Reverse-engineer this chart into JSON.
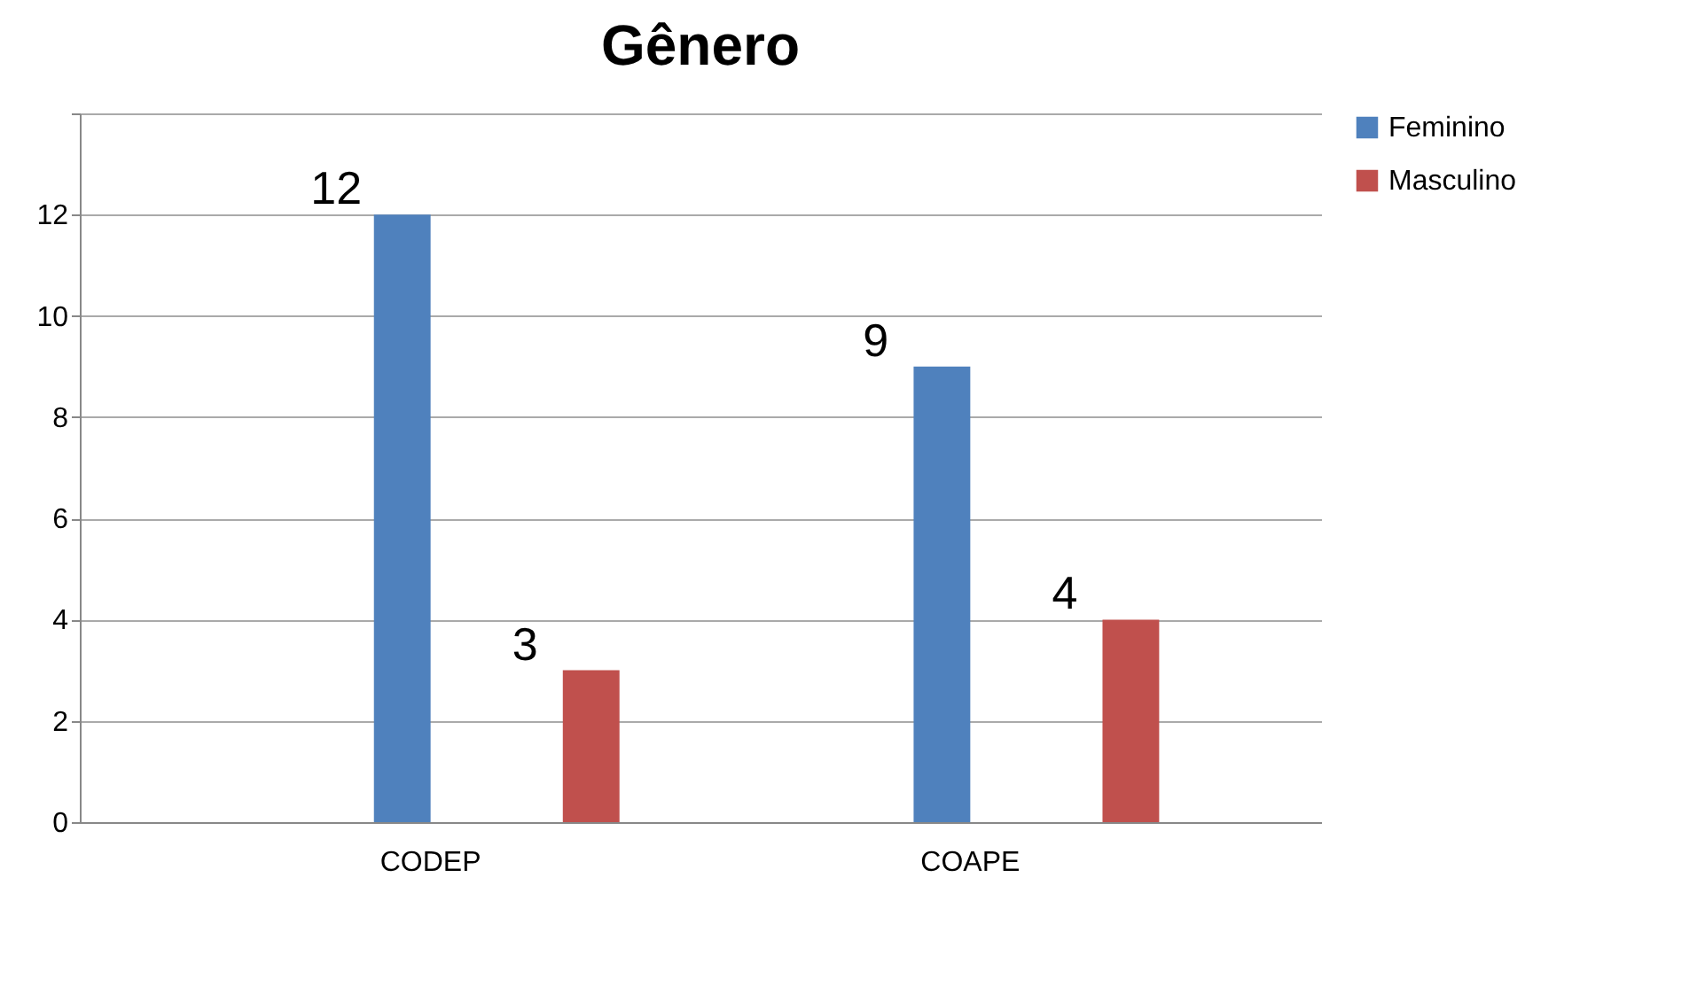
{
  "chart_data": {
    "type": "bar",
    "title": "Gênero",
    "categories": [
      "CODEP",
      "COAPE"
    ],
    "series": [
      {
        "name": "Feminino",
        "color": "#4f81bd",
        "values": [
          12,
          9
        ]
      },
      {
        "name": "Masculino",
        "color": "#c0504d",
        "values": [
          3,
          4
        ]
      }
    ],
    "ylim": [
      0,
      14
    ],
    "yticks": [
      0,
      2,
      4,
      6,
      8,
      10,
      12,
      {
        "value": 14,
        "label": null
      }
    ],
    "grid": true,
    "legend": "right",
    "data_labels": true
  }
}
